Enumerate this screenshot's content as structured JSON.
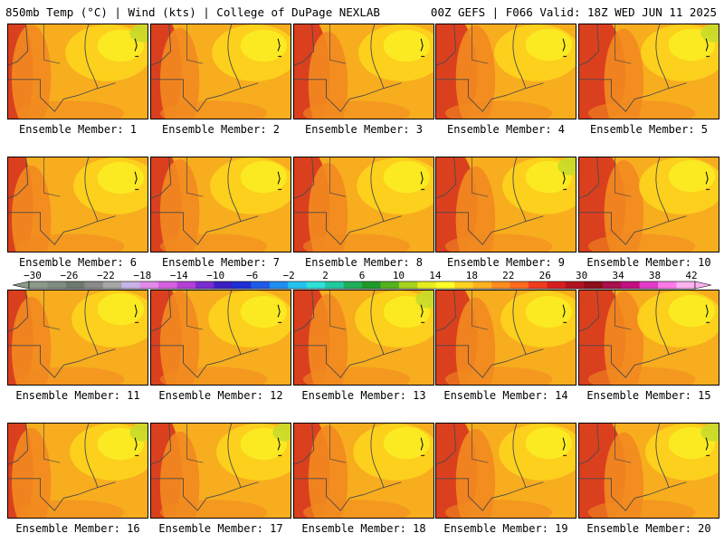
{
  "header": {
    "left_title": "850mb Temp (°C) | Wind (kts) | College of DuPage NEXLAB",
    "right_title": "00Z GEFS | F066 Valid: 18Z WED JUN 11 2025"
  },
  "colorbar": {
    "tick_labels": [
      "−30",
      "−26",
      "−22",
      "−18",
      "−14",
      "−10",
      "−6",
      "−2",
      "2",
      "6",
      "10",
      "14",
      "18",
      "22",
      "26",
      "30",
      "34",
      "38",
      "42"
    ],
    "colors": [
      "#8c9a8c",
      "#7f8c80",
      "#6e7a6f",
      "#8a8a8a",
      "#a6a6a6",
      "#c7b3e6",
      "#e08be8",
      "#d45fe0",
      "#b23fd6",
      "#7a2bd1",
      "#3b1fc4",
      "#1e2fd6",
      "#1f5be8",
      "#1f8ef0",
      "#25c2f0",
      "#2ee0d8",
      "#22c9a0",
      "#1fae5a",
      "#1f9a2a",
      "#55b21f",
      "#a8d21f",
      "#e8ec1f",
      "#ffff2a",
      "#ffd21f",
      "#ffb21f",
      "#ff8c1f",
      "#ff6a1f",
      "#f03c1f",
      "#d81f1f",
      "#b0141f",
      "#8c0f1a",
      "#a8104f",
      "#c21080",
      "#e23cc8",
      "#ff7ae8",
      "#ffb2f0"
    ]
  },
  "map_colors": {
    "hot": "#d83a1f",
    "warm": "#f28a1f",
    "mild": "#f7ad1e",
    "cool": "#fcd21c",
    "cold": "#fbeb23",
    "coldest": "#c8dc2a",
    "border": "#4a4a4a"
  },
  "members": [
    {
      "label": "Ensemble Member: 1"
    },
    {
      "label": "Ensemble Member: 2"
    },
    {
      "label": "Ensemble Member: 3"
    },
    {
      "label": "Ensemble Member: 4"
    },
    {
      "label": "Ensemble Member: 5"
    },
    {
      "label": "Ensemble Member: 6"
    },
    {
      "label": "Ensemble Member: 7"
    },
    {
      "label": "Ensemble Member: 8"
    },
    {
      "label": "Ensemble Member: 9"
    },
    {
      "label": "Ensemble Member: 10"
    },
    {
      "label": "Ensemble Member: 11"
    },
    {
      "label": "Ensemble Member: 12"
    },
    {
      "label": "Ensemble Member: 13"
    },
    {
      "label": "Ensemble Member: 14"
    },
    {
      "label": "Ensemble Member: 15"
    },
    {
      "label": "Ensemble Member: 16"
    },
    {
      "label": "Ensemble Member: 17"
    },
    {
      "label": "Ensemble Member: 18"
    },
    {
      "label": "Ensemble Member: 19"
    },
    {
      "label": "Ensemble Member: 20"
    }
  ]
}
